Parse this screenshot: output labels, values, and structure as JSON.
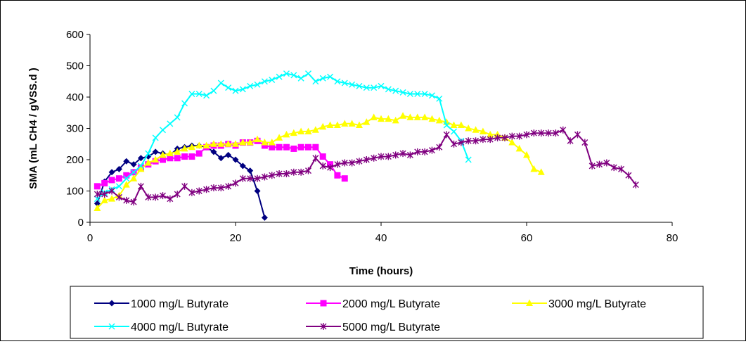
{
  "chart_data": {
    "type": "line",
    "title": "",
    "xlabel": "Time (hours)",
    "ylabel": "SMA (mL CH4 / gVSS.d )",
    "xlim": [
      0,
      80
    ],
    "ylim": [
      0,
      600
    ],
    "x_ticks": [
      0,
      20,
      40,
      60,
      80
    ],
    "y_ticks": [
      0,
      100,
      200,
      300,
      400,
      500,
      600
    ],
    "grid": false,
    "legend_position": "bottom",
    "series": [
      {
        "name": "1000 mg/L Butyrate",
        "color": "#000080",
        "marker": "diamond",
        "x": [
          1,
          2,
          3,
          4,
          5,
          6,
          7,
          8,
          9,
          10,
          11,
          12,
          13,
          14,
          15,
          16,
          17,
          18,
          19,
          20,
          21,
          22,
          23,
          24
        ],
        "y": [
          60,
          130,
          160,
          170,
          195,
          185,
          205,
          210,
          225,
          220,
          215,
          235,
          240,
          245,
          245,
          240,
          225,
          205,
          215,
          200,
          180,
          165,
          100,
          15
        ]
      },
      {
        "name": "2000 mg/L Butyrate",
        "color": "#FF00FF",
        "marker": "square",
        "x": [
          1,
          2,
          3,
          4,
          5,
          6,
          7,
          8,
          9,
          10,
          11,
          12,
          13,
          14,
          15,
          16,
          17,
          18,
          19,
          20,
          21,
          22,
          23,
          24,
          25,
          26,
          27,
          28,
          29,
          30,
          31,
          32,
          33,
          34,
          35
        ],
        "y": [
          115,
          125,
          135,
          140,
          150,
          160,
          175,
          185,
          195,
          200,
          205,
          205,
          210,
          210,
          220,
          240,
          245,
          245,
          250,
          245,
          255,
          255,
          260,
          245,
          240,
          240,
          240,
          235,
          240,
          240,
          240,
          210,
          185,
          150,
          140
        ]
      },
      {
        "name": "3000 mg/L Butyrate",
        "color": "#FFFF00",
        "marker": "triangle",
        "x": [
          1,
          2,
          3,
          4,
          5,
          6,
          7,
          8,
          9,
          10,
          11,
          12,
          13,
          14,
          15,
          16,
          17,
          18,
          19,
          20,
          21,
          22,
          23,
          24,
          25,
          26,
          27,
          28,
          29,
          30,
          31,
          32,
          33,
          34,
          35,
          36,
          37,
          38,
          39,
          40,
          41,
          42,
          43,
          44,
          45,
          46,
          47,
          48,
          49,
          50,
          51,
          52,
          53,
          54,
          55,
          56,
          57,
          58,
          59,
          60,
          61,
          62
        ],
        "y": [
          45,
          70,
          75,
          85,
          120,
          140,
          170,
          190,
          200,
          215,
          220,
          225,
          235,
          240,
          245,
          245,
          250,
          250,
          250,
          250,
          255,
          255,
          265,
          255,
          255,
          270,
          280,
          285,
          290,
          290,
          295,
          305,
          310,
          310,
          315,
          315,
          310,
          320,
          335,
          330,
          330,
          325,
          340,
          335,
          335,
          335,
          330,
          325,
          320,
          310,
          310,
          300,
          295,
          290,
          280,
          280,
          270,
          255,
          235,
          215,
          170,
          160
        ]
      },
      {
        "name": "4000 mg/L Butyrate",
        "color": "#00FFFF",
        "marker": "x",
        "x": [
          1,
          2,
          3,
          4,
          5,
          6,
          7,
          8,
          9,
          10,
          11,
          12,
          13,
          14,
          15,
          16,
          17,
          18,
          19,
          20,
          21,
          22,
          23,
          24,
          25,
          26,
          27,
          28,
          29,
          30,
          31,
          32,
          33,
          34,
          35,
          36,
          37,
          38,
          39,
          40,
          41,
          42,
          43,
          44,
          45,
          46,
          47,
          48,
          49,
          50,
          51,
          52
        ],
        "y": [
          75,
          95,
          105,
          115,
          140,
          160,
          180,
          220,
          270,
          295,
          315,
          335,
          380,
          410,
          410,
          405,
          420,
          445,
          430,
          420,
          425,
          435,
          440,
          450,
          455,
          465,
          475,
          470,
          460,
          475,
          450,
          460,
          465,
          450,
          445,
          440,
          435,
          430,
          430,
          435,
          425,
          420,
          415,
          410,
          410,
          410,
          405,
          395,
          310,
          290,
          260,
          200
        ]
      },
      {
        "name": "5000 mg/L Butyrate",
        "color": "#800080",
        "marker": "star",
        "x": [
          1,
          2,
          3,
          4,
          5,
          6,
          7,
          8,
          9,
          10,
          11,
          12,
          13,
          14,
          15,
          16,
          17,
          18,
          19,
          20,
          21,
          22,
          23,
          24,
          25,
          26,
          27,
          28,
          29,
          30,
          31,
          32,
          33,
          34,
          35,
          36,
          37,
          38,
          39,
          40,
          41,
          42,
          43,
          44,
          45,
          46,
          47,
          48,
          49,
          50,
          51,
          52,
          53,
          54,
          55,
          56,
          57,
          58,
          59,
          60,
          61,
          62,
          63,
          64,
          65,
          66,
          67,
          68,
          69,
          70,
          71,
          72,
          73,
          74,
          75
        ],
        "y": [
          90,
          90,
          100,
          80,
          70,
          65,
          115,
          80,
          80,
          85,
          75,
          90,
          115,
          95,
          100,
          105,
          110,
          110,
          115,
          125,
          140,
          140,
          140,
          145,
          150,
          155,
          155,
          160,
          160,
          165,
          205,
          180,
          175,
          185,
          190,
          190,
          195,
          200,
          205,
          210,
          210,
          215,
          220,
          215,
          225,
          225,
          230,
          240,
          280,
          250,
          255,
          260,
          260,
          265,
          265,
          270,
          270,
          275,
          275,
          280,
          285,
          285,
          285,
          285,
          295,
          260,
          280,
          255,
          180,
          185,
          190,
          175,
          170,
          150,
          120
        ]
      }
    ]
  }
}
